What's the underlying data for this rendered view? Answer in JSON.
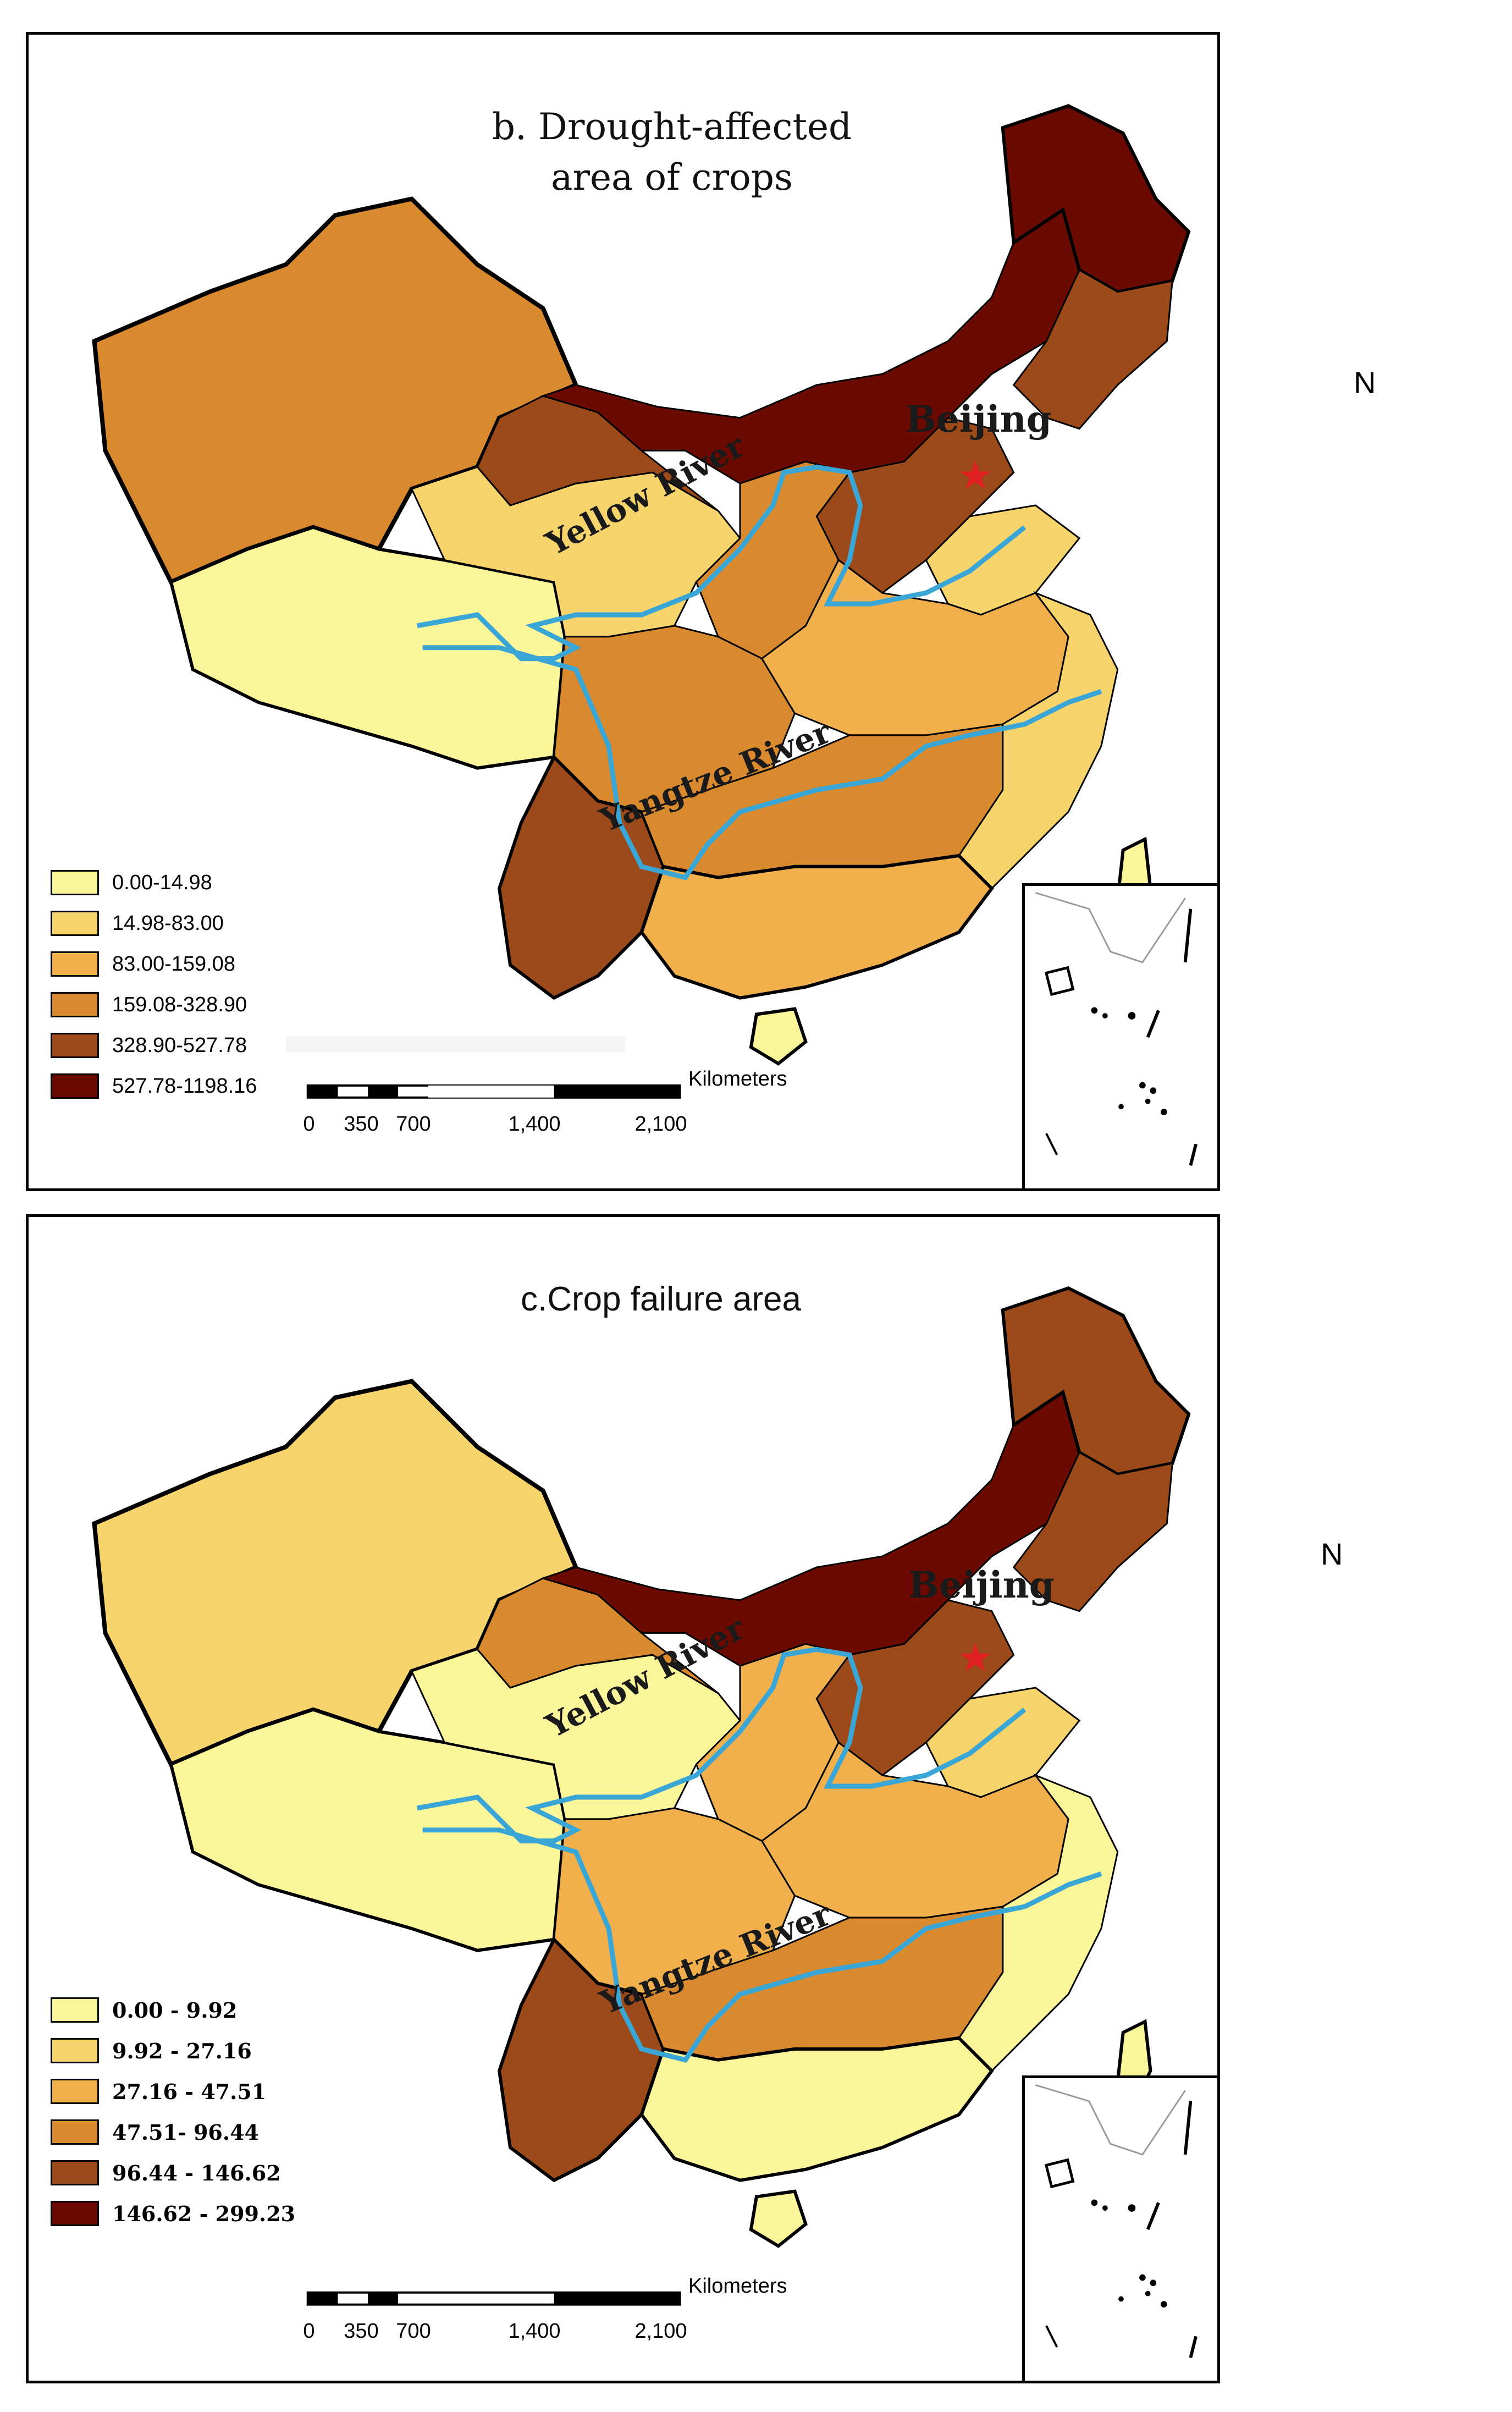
{
  "maps": [
    {
      "title_line1": "b. Drought-affected",
      "title_line2": "area of crops",
      "legend": [
        {
          "label": "0.00-14.98",
          "color": "#fcf69a"
        },
        {
          "label": "14.98-83.00",
          "color": "#f8d46c"
        },
        {
          "label": "83.00-159.08",
          "color": "#f2b04c"
        },
        {
          "label": "159.08-328.90",
          "color": "#d9892e"
        },
        {
          "label": "328.90-527.78",
          "color": "#9c4a1a"
        },
        {
          "label": "527.78-1198.16",
          "color": "#6a0a00"
        }
      ],
      "labels": {
        "capital": "Beijing",
        "river1": "Yellow River",
        "river2": "Yangtze River"
      },
      "north": "N",
      "scale": {
        "unit": "Kilometers",
        "ticks": [
          "0",
          "350",
          "700",
          "1,400",
          "2,100"
        ]
      }
    },
    {
      "title": "c.Crop failure area",
      "legend": [
        {
          "label": "0.00 - 9.92",
          "color": "#fcf69a"
        },
        {
          "label": "9.92 - 27.16",
          "color": "#f8d46c"
        },
        {
          "label": "27.16 - 47.51",
          "color": "#f2b04c"
        },
        {
          "label": "47.51- 96.44",
          "color": "#d9892e"
        },
        {
          "label": "96.44 - 146.62",
          "color": "#9c4a1a"
        },
        {
          "label": "146.62 - 299.23",
          "color": "#6a0a00"
        }
      ],
      "labels": {
        "capital": "Beijing",
        "river1": "Yellow River",
        "river2": "Yangtze River"
      },
      "north": "N",
      "scale": {
        "unit": "Kilometers",
        "ticks": [
          "0",
          "350",
          "700",
          "1,400",
          "2,100"
        ]
      }
    }
  ],
  "colors": {
    "river": "#3aa6d6",
    "capital_star": "#e02020",
    "border": "#000000"
  }
}
